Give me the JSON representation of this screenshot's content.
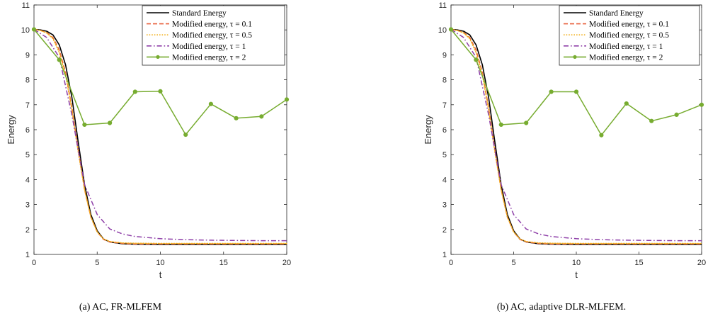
{
  "chart_data": [
    {
      "type": "line",
      "caption": "(a) AC, FR-MLFEM",
      "xlabel": "t",
      "ylabel": "Energy",
      "xlim": [
        0,
        20
      ],
      "ylim": [
        1,
        11
      ],
      "xticks": [
        0,
        5,
        10,
        15,
        20
      ],
      "yticks": [
        1,
        2,
        3,
        4,
        5,
        6,
        7,
        8,
        9,
        10,
        11
      ],
      "legend_position": "top-right",
      "grid": false,
      "series": [
        {
          "name": "Standard Energy",
          "color": "#000000",
          "style": "solid",
          "markers": false,
          "x": [
            0,
            0.5,
            1,
            1.5,
            2,
            2.5,
            3,
            3.5,
            4,
            4.5,
            5,
            5.5,
            6,
            7,
            8,
            10,
            12,
            15,
            20
          ],
          "y": [
            10.02,
            10.0,
            9.95,
            9.8,
            9.4,
            8.6,
            7.3,
            5.5,
            3.8,
            2.6,
            1.95,
            1.62,
            1.5,
            1.43,
            1.41,
            1.4,
            1.4,
            1.4,
            1.4
          ]
        },
        {
          "name": "Modified energy, τ = 0.1",
          "color": "#e8603c",
          "style": "dashed",
          "markers": false,
          "x": [
            0,
            0.5,
            1,
            1.5,
            2,
            2.5,
            3,
            3.5,
            4,
            4.5,
            5,
            5.5,
            6,
            7,
            8,
            10,
            12,
            15,
            20
          ],
          "y": [
            10.02,
            9.98,
            9.9,
            9.7,
            9.2,
            8.3,
            6.9,
            5.2,
            3.6,
            2.5,
            1.9,
            1.6,
            1.5,
            1.44,
            1.42,
            1.42,
            1.42,
            1.42,
            1.42
          ]
        },
        {
          "name": "Modified energy, τ = 0.5",
          "color": "#f2b01e",
          "style": "dotted",
          "markers": false,
          "x": [
            0,
            0.5,
            1,
            1.5,
            2,
            2.5,
            3,
            3.5,
            4,
            4.5,
            5,
            5.5,
            6,
            7,
            8,
            10,
            12,
            15,
            20
          ],
          "y": [
            10.02,
            9.98,
            9.88,
            9.65,
            9.1,
            8.2,
            6.8,
            5.1,
            3.6,
            2.5,
            1.9,
            1.62,
            1.52,
            1.46,
            1.45,
            1.44,
            1.44,
            1.44,
            1.44
          ]
        },
        {
          "name": "Modified energy, τ = 1",
          "color": "#8e3fa8",
          "style": "dashdot",
          "markers": false,
          "x": [
            0,
            1,
            2,
            3,
            4,
            5,
            6,
            7,
            8,
            10,
            12,
            14,
            16,
            18,
            20
          ],
          "y": [
            10.02,
            9.7,
            8.9,
            6.6,
            3.8,
            2.6,
            2.02,
            1.82,
            1.72,
            1.63,
            1.59,
            1.57,
            1.56,
            1.55,
            1.55
          ]
        },
        {
          "name": "Modified energy, τ = 2",
          "color": "#77ac30",
          "style": "solid",
          "markers": true,
          "x": [
            0,
            2,
            4,
            6,
            8,
            10,
            12,
            14,
            16,
            18,
            20
          ],
          "y": [
            10.02,
            8.8,
            6.2,
            6.27,
            7.52,
            7.54,
            5.8,
            7.03,
            6.46,
            6.53,
            7.21
          ]
        }
      ]
    },
    {
      "type": "line",
      "caption": "(b) AC, adaptive DLR-MLFEM.",
      "xlabel": "t",
      "ylabel": "Energy",
      "xlim": [
        0,
        20
      ],
      "ylim": [
        1,
        11
      ],
      "xticks": [
        0,
        5,
        10,
        15,
        20
      ],
      "yticks": [
        1,
        2,
        3,
        4,
        5,
        6,
        7,
        8,
        9,
        10,
        11
      ],
      "legend_position": "top-right",
      "grid": false,
      "series": [
        {
          "name": "Standard Energy",
          "color": "#000000",
          "style": "solid",
          "markers": false,
          "x": [
            0,
            0.5,
            1,
            1.5,
            2,
            2.5,
            3,
            3.5,
            4,
            4.5,
            5,
            5.5,
            6,
            7,
            8,
            10,
            12,
            15,
            20
          ],
          "y": [
            10.02,
            10.0,
            9.95,
            9.8,
            9.4,
            8.6,
            7.3,
            5.5,
            3.8,
            2.6,
            1.95,
            1.62,
            1.5,
            1.43,
            1.41,
            1.4,
            1.4,
            1.4,
            1.4
          ]
        },
        {
          "name": "Modified energy, τ = 0.1",
          "color": "#e8603c",
          "style": "dashed",
          "markers": false,
          "x": [
            0,
            0.5,
            1,
            1.5,
            2,
            2.5,
            3,
            3.5,
            4,
            4.5,
            5,
            5.5,
            6,
            7,
            8,
            10,
            12,
            15,
            20
          ],
          "y": [
            10.02,
            9.98,
            9.9,
            9.7,
            9.2,
            8.3,
            6.9,
            5.2,
            3.6,
            2.5,
            1.9,
            1.6,
            1.5,
            1.44,
            1.42,
            1.42,
            1.42,
            1.42,
            1.42
          ]
        },
        {
          "name": "Modified energy, τ = 0.5",
          "color": "#f2b01e",
          "style": "dotted",
          "markers": false,
          "x": [
            0,
            0.5,
            1,
            1.5,
            2,
            2.5,
            3,
            3.5,
            4,
            4.5,
            5,
            5.5,
            6,
            7,
            8,
            10,
            12,
            15,
            20
          ],
          "y": [
            10.02,
            9.98,
            9.88,
            9.65,
            9.1,
            8.2,
            6.8,
            5.1,
            3.6,
            2.5,
            1.9,
            1.62,
            1.52,
            1.46,
            1.45,
            1.44,
            1.44,
            1.44,
            1.44
          ]
        },
        {
          "name": "Modified energy, τ = 1",
          "color": "#8e3fa8",
          "style": "dashdot",
          "markers": false,
          "x": [
            0,
            1,
            2,
            3,
            4,
            5,
            6,
            7,
            8,
            10,
            12,
            14,
            16,
            18,
            20
          ],
          "y": [
            10.02,
            9.7,
            8.9,
            6.6,
            3.8,
            2.6,
            2.02,
            1.82,
            1.72,
            1.63,
            1.59,
            1.57,
            1.56,
            1.55,
            1.55
          ]
        },
        {
          "name": "Modified energy, τ = 2",
          "color": "#77ac30",
          "style": "solid",
          "markers": true,
          "x": [
            0,
            2,
            4,
            6,
            8,
            10,
            12,
            14,
            16,
            18,
            20
          ],
          "y": [
            10.02,
            8.8,
            6.2,
            6.27,
            7.52,
            7.52,
            5.78,
            7.05,
            6.35,
            6.6,
            7.0
          ]
        }
      ]
    }
  ]
}
